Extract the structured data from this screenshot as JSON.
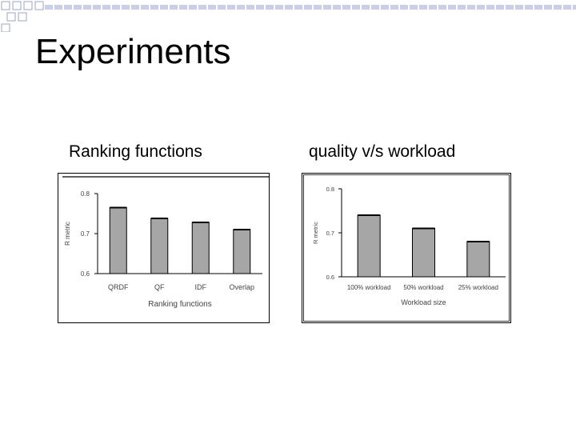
{
  "slide": {
    "title": "Experiments",
    "left_heading": "Ranking functions",
    "right_heading": "quality v/s workload"
  },
  "colors": {
    "bar_fill": "#a6a6a6",
    "bar_stroke": "#000000",
    "deco_square": "#9aa6c8",
    "deco_line": "#c9cfe4"
  },
  "chart_data": [
    {
      "type": "bar",
      "title": "",
      "categories": [
        "QRDF",
        "QF",
        "IDF",
        "Overlap"
      ],
      "values": [
        0.765,
        0.738,
        0.728,
        0.71
      ],
      "xlabel": "Ranking functions",
      "ylabel": "R metric",
      "ylim": [
        0.6,
        0.8
      ],
      "yticks": [
        "0.6",
        "0.7",
        "0.8"
      ],
      "grid": false,
      "legend": "none"
    },
    {
      "type": "bar",
      "title": "",
      "categories": [
        "100% workload",
        "50% workload",
        "25% workload"
      ],
      "values": [
        0.74,
        0.71,
        0.68
      ],
      "xlabel": "Workload size",
      "ylabel": "R metric",
      "ylim": [
        0.6,
        0.8
      ],
      "yticks": [
        "0.6",
        "0.7",
        "0.8"
      ],
      "grid": false,
      "legend": "none"
    }
  ]
}
